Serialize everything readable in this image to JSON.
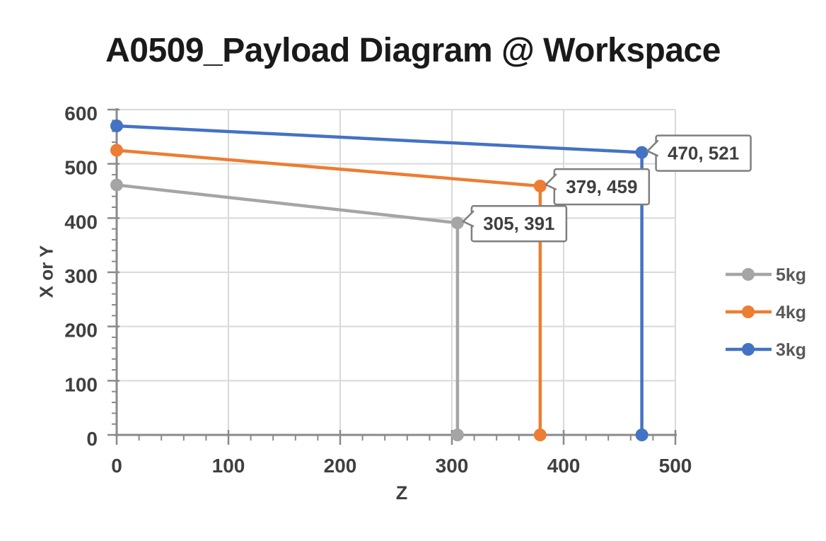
{
  "chart_data": {
    "type": "line",
    "title": "A0509_Payload Diagram @ Workspace",
    "xlabel": "Z",
    "ylabel": "X or Y",
    "xlim": [
      0,
      500
    ],
    "ylim": [
      0,
      600
    ],
    "x_ticks": [
      0,
      100,
      200,
      300,
      400,
      500
    ],
    "y_ticks": [
      0,
      100,
      200,
      300,
      400,
      500,
      600
    ],
    "minor_tick_step": 20,
    "grid": true,
    "legend_position": "right",
    "series": [
      {
        "name": "5kg",
        "color": "#A5A5A5",
        "points": [
          [
            0,
            461
          ],
          [
            305,
            391
          ],
          [
            305,
            0
          ]
        ],
        "data_label": {
          "text": "305, 391",
          "point": [
            305,
            391
          ]
        }
      },
      {
        "name": "4kg",
        "color": "#ED7D31",
        "points": [
          [
            0,
            525
          ],
          [
            379,
            459
          ],
          [
            379,
            0
          ]
        ],
        "data_label": {
          "text": "379, 459",
          "point": [
            379,
            459
          ]
        }
      },
      {
        "name": "3kg",
        "color": "#4472C4",
        "points": [
          [
            0,
            570
          ],
          [
            470,
            521
          ],
          [
            470,
            0
          ]
        ],
        "data_label": {
          "text": "470, 521",
          "point": [
            470,
            521
          ]
        }
      }
    ],
    "legend": [
      {
        "label": "5kg",
        "color": "#A5A5A5"
      },
      {
        "label": "4kg",
        "color": "#ED7D31"
      },
      {
        "label": "3kg",
        "color": "#4472C4"
      }
    ],
    "colors": {
      "title": "#1A1A1A",
      "axis": "#8A8A8A",
      "grid": "#D9D9D9",
      "tick_label": "#404040",
      "axis_title": "#404040",
      "legend_text": "#595959",
      "callout_border": "#7F7F7F",
      "callout_fill": "#FFFFFF",
      "callout_text": "#3F3F3F"
    }
  }
}
